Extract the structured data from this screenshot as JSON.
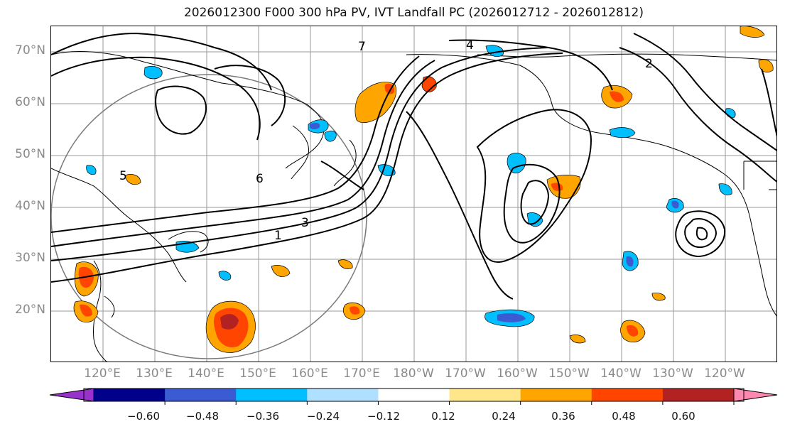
{
  "title": "2026012300 F000 300 hPa PV, IVT Landfall PC (2026012712 - 2026012812)",
  "latitude_labels": [
    "70°N",
    "60°N",
    "50°N",
    "40°N",
    "30°N",
    "20°N"
  ],
  "longitude_labels": [
    "120°E",
    "130°E",
    "140°E",
    "150°E",
    "160°E",
    "170°E",
    "180°W",
    "170°W",
    "160°W",
    "150°W",
    "140°W",
    "130°W",
    "120°W"
  ],
  "contour_labels": [
    "1",
    "2",
    "3",
    "4",
    "5",
    "6",
    "7"
  ],
  "colorbar": {
    "ticks": [
      "−0.60",
      "−0.48",
      "−0.36",
      "−0.24",
      "−0.12",
      "0.12",
      "0.24",
      "0.36",
      "0.48",
      "0.60"
    ],
    "colors": [
      "#9932cc",
      "#00008b",
      "#3a5bd1",
      "#00bfff",
      "#b0e0ff",
      "#ffffff",
      "#ffe68a",
      "#ffa500",
      "#ff4500",
      "#b22222",
      "#ff88b0"
    ]
  },
  "colors": {
    "contour": "#000000",
    "grid": "#808080",
    "coastline": "#000000"
  }
}
